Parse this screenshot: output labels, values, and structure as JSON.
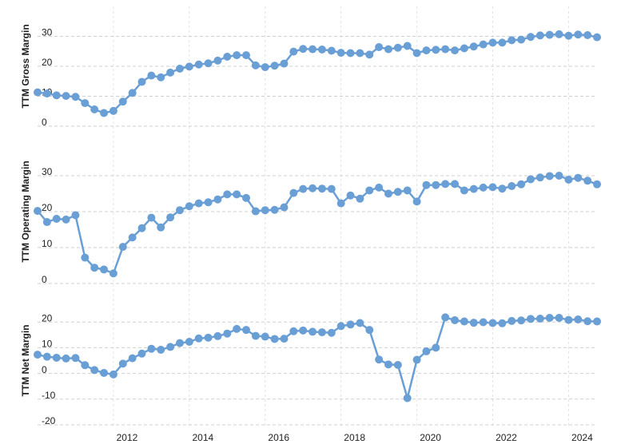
{
  "chart_data": [
    {
      "type": "line",
      "y_label": "TTM Gross Margin",
      "color": "#6a9fd6",
      "ylim": [
        0,
        40
      ],
      "yticks": [
        0,
        10,
        20,
        30
      ],
      "grid": true,
      "values": [
        11.3,
        10.9,
        10.3,
        10.1,
        9.8,
        7.7,
        5.6,
        4.4,
        5.1,
        8.2,
        11.1,
        14.8,
        16.9,
        16.3,
        17.9,
        19.2,
        19.9,
        20.6,
        21,
        21.9,
        23.2,
        23.7,
        23.7,
        20.3,
        19.7,
        20.2,
        20.9,
        24.9,
        25.8,
        25.7,
        25.6,
        25.2,
        24.5,
        24.4,
        24.4,
        23.9,
        26.4,
        25.7,
        26.2,
        26.8,
        24.4,
        25.3,
        25.5,
        25.7,
        25.3,
        26,
        26.6,
        27.3,
        27.9,
        27.9,
        28.7,
        28.9,
        29.8,
        30.3,
        30.5,
        30.7,
        30.2,
        30.6,
        30.4,
        29.7
      ]
    },
    {
      "type": "line",
      "y_label": "TTM Operating Margin",
      "color": "#6a9fd6",
      "ylim": [
        0,
        40
      ],
      "yticks": [
        0,
        10,
        20,
        30
      ],
      "grid": true,
      "values": [
        20.2,
        17.1,
        18.0,
        17.8,
        19.0,
        7.2,
        4.4,
        3.9,
        2.8,
        10.2,
        12.8,
        15.4,
        18.3,
        15.6,
        18.4,
        20.4,
        21.5,
        22.3,
        22.6,
        23.4,
        24.8,
        24.8,
        23.8,
        20.1,
        20.4,
        20.5,
        21.2,
        25.2,
        26.3,
        26.5,
        26.4,
        26.3,
        22.3,
        24.5,
        23.6,
        25.9,
        26.7,
        25.0,
        25.5,
        25.9,
        22.8,
        27.4,
        27.4,
        27.7,
        27.7,
        25.9,
        26.3,
        26.7,
        26.8,
        26.4,
        27.1,
        27.6,
        29.0,
        29.5,
        29.9,
        30.0,
        28.9,
        29.4,
        28.6,
        27.6
      ]
    },
    {
      "type": "line",
      "y_label": "TTM Net Margin",
      "color": "#6a9fd6",
      "ylim": [
        -20,
        30
      ],
      "yticks": [
        -20,
        -10,
        0,
        10,
        20
      ],
      "grid": true,
      "categories": [
        null,
        null,
        null,
        null,
        null,
        null,
        null,
        null,
        "2012",
        null,
        null,
        null,
        null,
        null,
        null,
        null,
        "2014",
        null,
        null,
        null,
        null,
        null,
        null,
        null,
        "2016",
        null,
        null,
        null,
        null,
        null,
        null,
        null,
        "2018",
        null,
        null,
        null,
        null,
        null,
        null,
        null,
        "2020",
        null,
        null,
        null,
        null,
        null,
        null,
        null,
        "2022",
        null,
        null,
        null,
        null,
        null,
        null,
        null,
        "2024",
        null,
        null,
        null
      ],
      "values": [
        7.3,
        6.5,
        6.1,
        5.8,
        6.0,
        3.2,
        1.3,
        0.2,
        -0.4,
        3.8,
        5.9,
        7.7,
        9.6,
        9.2,
        10.3,
        11.8,
        12.3,
        13.6,
        13.9,
        14.5,
        15.5,
        17.3,
        16.9,
        14.6,
        14.3,
        13.4,
        13.5,
        16.4,
        16.7,
        16.2,
        16.0,
        15.8,
        18.4,
        19.0,
        19.6,
        16.9,
        5.4,
        3.5,
        3.3,
        -9.6,
        5.3,
        8.6,
        10.0,
        21.8,
        20.7,
        20.2,
        19.7,
        19.9,
        19.6,
        19.5,
        20.4,
        20.6,
        21.2,
        21.3,
        21.6,
        21.6,
        20.8,
        21.0,
        20.3,
        20.2
      ]
    }
  ]
}
